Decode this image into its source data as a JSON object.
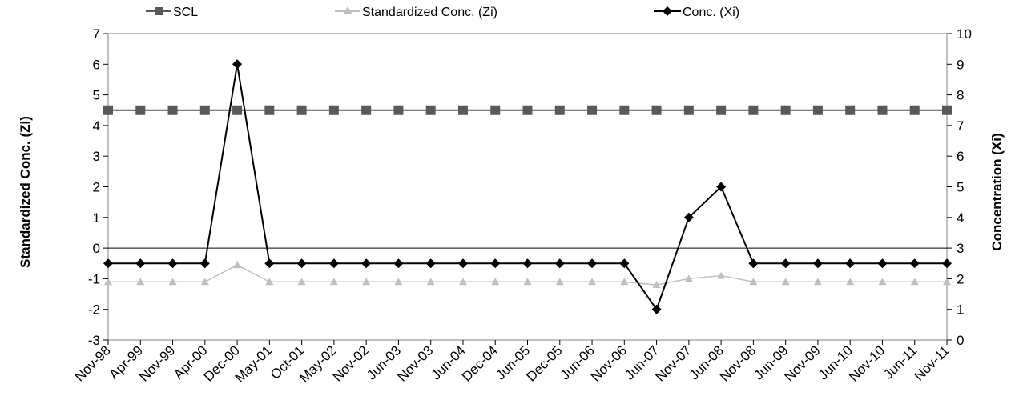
{
  "chart_data": {
    "type": "line",
    "categories": [
      "Nov-98",
      "Apr-99",
      "Nov-99",
      "Apr-00",
      "Dec-00",
      "May-01",
      "Oct-01",
      "May-02",
      "Nov-02",
      "Jun-03",
      "Nov-03",
      "Jun-04",
      "Dec-04",
      "Jun-05",
      "Dec-05",
      "Jun-06",
      "Nov-06",
      "Jun-07",
      "Nov-07",
      "Jun-08",
      "Nov-08",
      "Jun-09",
      "Nov-09",
      "Jun-10",
      "Nov-10",
      "Jun-11",
      "Nov-11"
    ],
    "y_left": {
      "label": "Standardized Conc. (Zi)",
      "min": -3,
      "max": 7,
      "ticks": [
        -3,
        -2,
        -1,
        0,
        1,
        2,
        3,
        4,
        5,
        6,
        7
      ]
    },
    "y_right": {
      "label": "Concentration (Xi)",
      "min": 0,
      "max": 10,
      "ticks": [
        0,
        1,
        2,
        3,
        4,
        5,
        6,
        7,
        8,
        9,
        10
      ]
    },
    "series": [
      {
        "name": "SCL",
        "axis": "left",
        "color": "#595959",
        "marker": "square",
        "values": [
          4.5,
          4.5,
          4.5,
          4.5,
          4.5,
          4.5,
          4.5,
          4.5,
          4.5,
          4.5,
          4.5,
          4.5,
          4.5,
          4.5,
          4.5,
          4.5,
          4.5,
          4.5,
          4.5,
          4.5,
          4.5,
          4.5,
          4.5,
          4.5,
          4.5,
          4.5,
          4.5
        ]
      },
      {
        "name": "Standardized Conc. (Zi)",
        "axis": "left",
        "color": "#bfbfbf",
        "marker": "triangle",
        "values": [
          -1.1,
          -1.1,
          -1.1,
          -1.1,
          -0.55,
          -1.1,
          -1.1,
          -1.1,
          -1.1,
          -1.1,
          -1.1,
          -1.1,
          -1.1,
          -1.1,
          -1.1,
          -1.1,
          -1.1,
          -1.2,
          -1.0,
          -0.9,
          -1.1,
          -1.1,
          -1.1,
          -1.1,
          -1.1,
          -1.1,
          -1.1
        ]
      },
      {
        "name": "Conc. (Xi)",
        "axis": "right",
        "color": "#000000",
        "marker": "diamond",
        "values": [
          2.5,
          2.5,
          2.5,
          2.5,
          9,
          2.5,
          2.5,
          2.5,
          2.5,
          2.5,
          2.5,
          2.5,
          2.5,
          2.5,
          2.5,
          2.5,
          2.5,
          1,
          4,
          5,
          2.5,
          2.5,
          2.5,
          2.5,
          2.5,
          2.5,
          2.5
        ]
      }
    ],
    "legend_position": "top",
    "grid": false
  }
}
